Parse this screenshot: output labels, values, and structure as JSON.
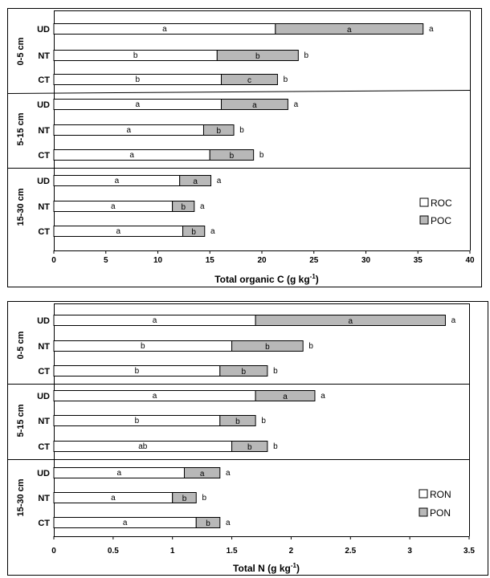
{
  "chart_data": [
    {
      "type": "bar",
      "stacked": true,
      "orientation": "horizontal",
      "xlabel": "Total organic C (g kg-1)",
      "xlabel_parts": {
        "main": "Total organic C (g kg",
        "sup": "-1",
        "close": ")"
      },
      "xlim": [
        0,
        40
      ],
      "ticks": [
        0,
        5,
        10,
        15,
        20,
        25,
        30,
        35,
        40
      ],
      "groups": [
        "0-5 cm",
        "5-15 cm",
        "15-30 cm"
      ],
      "legend": [
        {
          "name": "ROC",
          "color": "#ffffff"
        },
        {
          "name": "POC",
          "color": "#b8b8b8"
        }
      ],
      "rows": [
        {
          "group": "0-5 cm",
          "category": "UD",
          "values": [
            21.3,
            14.2
          ],
          "letters": [
            "a",
            "a",
            "a"
          ]
        },
        {
          "group": "0-5 cm",
          "category": "NT",
          "values": [
            15.7,
            7.8
          ],
          "letters": [
            "b",
            "b",
            "b"
          ]
        },
        {
          "group": "0-5 cm",
          "category": "CT",
          "values": [
            16.1,
            5.4
          ],
          "letters": [
            "b",
            "c",
            "b"
          ]
        },
        {
          "group": "5-15 cm",
          "category": "UD",
          "values": [
            16.1,
            6.4
          ],
          "letters": [
            "a",
            "a",
            "a"
          ]
        },
        {
          "group": "5-15 cm",
          "category": "NT",
          "values": [
            14.4,
            2.9
          ],
          "letters": [
            "a",
            "b",
            "b"
          ]
        },
        {
          "group": "5-15 cm",
          "category": "CT",
          "values": [
            15.0,
            4.2
          ],
          "letters": [
            "a",
            "b",
            "b"
          ]
        },
        {
          "group": "15-30 cm",
          "category": "UD",
          "values": [
            12.1,
            3.0
          ],
          "letters": [
            "a",
            "a",
            "a"
          ]
        },
        {
          "group": "15-30 cm",
          "category": "NT",
          "values": [
            11.4,
            2.1
          ],
          "letters": [
            "a",
            "b",
            "a"
          ]
        },
        {
          "group": "15-30 cm",
          "category": "CT",
          "values": [
            12.4,
            2.1
          ],
          "letters": [
            "a",
            "b",
            "a"
          ]
        }
      ]
    },
    {
      "type": "bar",
      "stacked": true,
      "orientation": "horizontal",
      "xlabel": "Total N (g kg-1)",
      "xlabel_parts": {
        "main": "Total N (g kg",
        "sup": "-1",
        "close": ")"
      },
      "xlim": [
        0,
        3.5
      ],
      "ticks": [
        0,
        0.5,
        1,
        1.5,
        2,
        2.5,
        3,
        3.5
      ],
      "groups": [
        "0-5 cm",
        "5-15 cm",
        "15-30 cm"
      ],
      "legend": [
        {
          "name": "RON",
          "color": "#ffffff"
        },
        {
          "name": "PON",
          "color": "#b8b8b8"
        }
      ],
      "rows": [
        {
          "group": "0-5 cm",
          "category": "UD",
          "values": [
            1.7,
            1.6
          ],
          "letters": [
            "a",
            "a",
            "a"
          ]
        },
        {
          "group": "0-5 cm",
          "category": "NT",
          "values": [
            1.5,
            0.6
          ],
          "letters": [
            "b",
            "b",
            "b"
          ]
        },
        {
          "group": "0-5 cm",
          "category": "CT",
          "values": [
            1.4,
            0.4
          ],
          "letters": [
            "b",
            "b",
            "b"
          ]
        },
        {
          "group": "5-15 cm",
          "category": "UD",
          "values": [
            1.7,
            0.5
          ],
          "letters": [
            "a",
            "a",
            "a"
          ]
        },
        {
          "group": "5-15 cm",
          "category": "NT",
          "values": [
            1.4,
            0.3
          ],
          "letters": [
            "b",
            "b",
            "b"
          ]
        },
        {
          "group": "5-15 cm",
          "category": "CT",
          "values": [
            1.5,
            0.3
          ],
          "letters": [
            "ab",
            "b",
            "b"
          ]
        },
        {
          "group": "15-30 cm",
          "category": "UD",
          "values": [
            1.1,
            0.3
          ],
          "letters": [
            "a",
            "a",
            "a"
          ]
        },
        {
          "group": "15-30 cm",
          "category": "NT",
          "values": [
            1.0,
            0.2
          ],
          "letters": [
            "a",
            "b",
            "b"
          ]
        },
        {
          "group": "15-30 cm",
          "category": "CT",
          "values": [
            1.2,
            0.2
          ],
          "letters": [
            "a",
            "b",
            "a"
          ]
        }
      ]
    }
  ]
}
